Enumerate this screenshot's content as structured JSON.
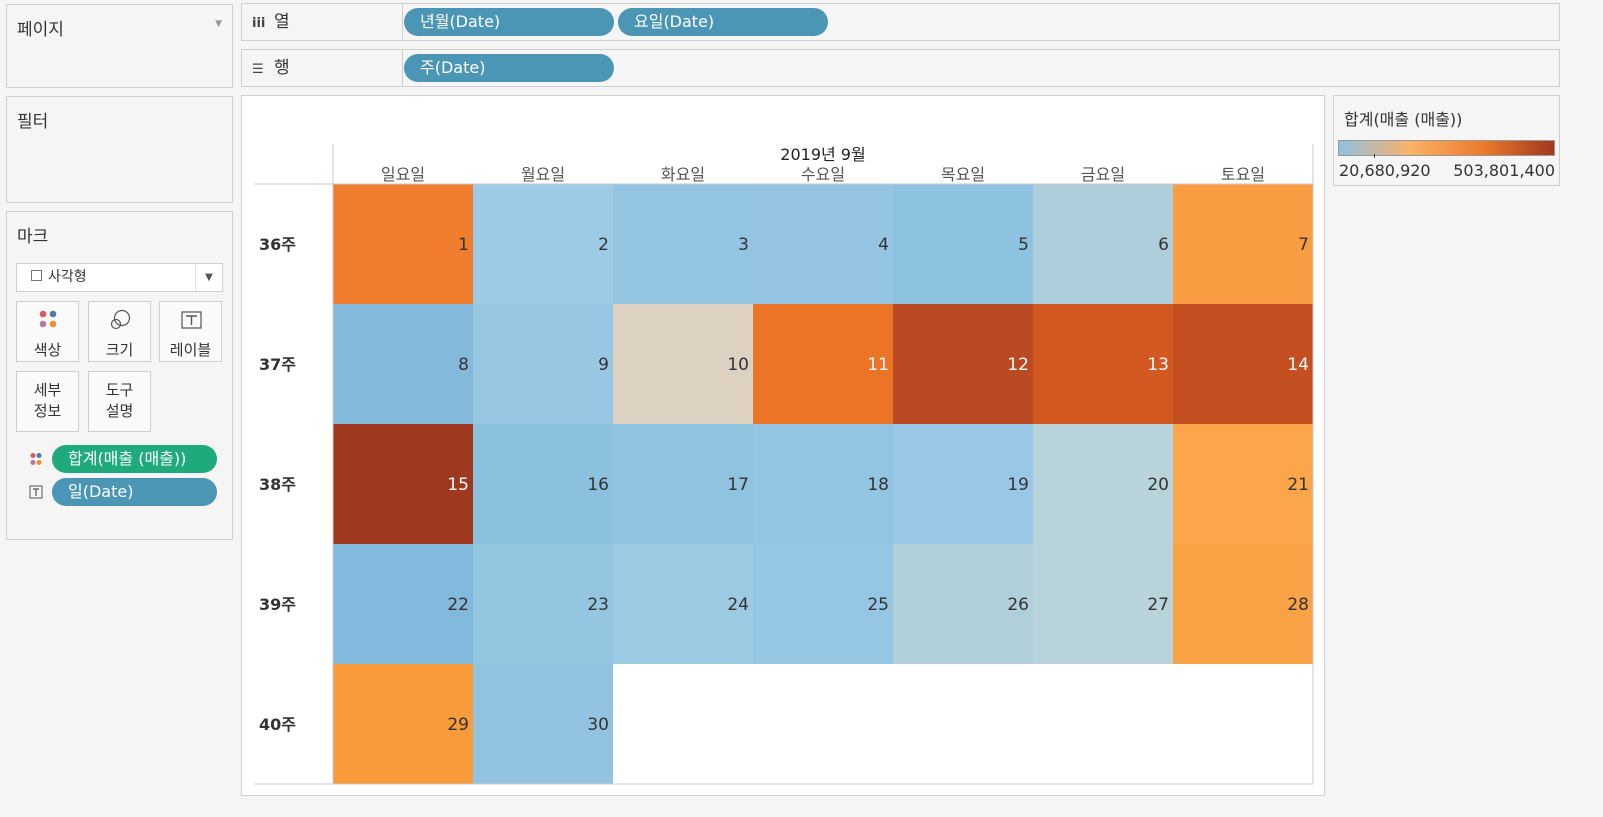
{
  "pages_panel": {
    "title": "페이지"
  },
  "filters_panel": {
    "title": "필터"
  },
  "marks_panel": {
    "title": "마크",
    "mark_type": "사각형",
    "buttons": {
      "color": "색상",
      "size": "크기",
      "label": "레이블",
      "detail": "세부\n정보",
      "tooltip": "도구\n설명"
    },
    "pills": [
      {
        "field": "합계(매출 (매출))",
        "encoding": "color-icon"
      },
      {
        "field": "일(Date)",
        "encoding": "label-icon"
      }
    ]
  },
  "columns_shelf": {
    "label": "열",
    "pills": [
      "년월(Date)",
      "요일(Date)"
    ]
  },
  "rows_shelf": {
    "label": "행",
    "pills": [
      "주(Date)"
    ]
  },
  "legend": {
    "title": "합계(매출 (매출))",
    "min_label": "20,680,920",
    "max_label": "503,801,400",
    "min": 20680920,
    "max": 503801400,
    "stops": [
      "#8fc1e1",
      "#f9b166",
      "#ee7b2c",
      "#9f3820"
    ]
  },
  "chart_data": {
    "type": "heatmap",
    "title": "2019년 9월",
    "columns": [
      "일요일",
      "월요일",
      "화요일",
      "수요일",
      "목요일",
      "금요일",
      "토요일"
    ],
    "rows": [
      "36주",
      "37주",
      "38주",
      "39주",
      "40주"
    ],
    "cells": [
      {
        "row": 0,
        "col": 0,
        "day": "1",
        "color": "#ef7d2d",
        "light_text": false
      },
      {
        "row": 0,
        "col": 1,
        "day": "2",
        "color": "#9dcae4",
        "light_text": false
      },
      {
        "row": 0,
        "col": 2,
        "day": "3",
        "color": "#93c4e1",
        "light_text": false
      },
      {
        "row": 0,
        "col": 3,
        "day": "4",
        "color": "#95c5e2",
        "light_text": false
      },
      {
        "row": 0,
        "col": 4,
        "day": "5",
        "color": "#8ec2e1",
        "light_text": false
      },
      {
        "row": 0,
        "col": 5,
        "day": "6",
        "color": "#afcedb",
        "light_text": false
      },
      {
        "row": 0,
        "col": 6,
        "day": "7",
        "color": "#f99c42",
        "light_text": false
      },
      {
        "row": 1,
        "col": 0,
        "day": "8",
        "color": "#84b9dc",
        "light_text": false
      },
      {
        "row": 1,
        "col": 1,
        "day": "9",
        "color": "#98c7e3",
        "light_text": false
      },
      {
        "row": 1,
        "col": 2,
        "day": "10",
        "color": "#ddd2c1",
        "light_text": false
      },
      {
        "row": 1,
        "col": 3,
        "day": "11",
        "color": "#ec7426",
        "light_text": true
      },
      {
        "row": 1,
        "col": 4,
        "day": "12",
        "color": "#b94a22",
        "light_text": true
      },
      {
        "row": 1,
        "col": 5,
        "day": "13",
        "color": "#d35821",
        "light_text": true
      },
      {
        "row": 1,
        "col": 6,
        "day": "14",
        "color": "#c44f21",
        "light_text": true
      },
      {
        "row": 2,
        "col": 0,
        "day": "15",
        "color": "#9e3920",
        "light_text": true
      },
      {
        "row": 2,
        "col": 1,
        "day": "16",
        "color": "#8cc0df",
        "light_text": false
      },
      {
        "row": 2,
        "col": 2,
        "day": "17",
        "color": "#90c3e0",
        "light_text": false
      },
      {
        "row": 2,
        "col": 3,
        "day": "18",
        "color": "#93c4e1",
        "light_text": false
      },
      {
        "row": 2,
        "col": 4,
        "day": "19",
        "color": "#98c8e5",
        "light_text": false
      },
      {
        "row": 2,
        "col": 5,
        "day": "20",
        "color": "#b8d3d9",
        "light_text": false
      },
      {
        "row": 2,
        "col": 6,
        "day": "21",
        "color": "#fca64b",
        "light_text": false
      },
      {
        "row": 3,
        "col": 0,
        "day": "22",
        "color": "#83b9dc",
        "light_text": false
      },
      {
        "row": 3,
        "col": 1,
        "day": "23",
        "color": "#94c5e1",
        "light_text": false
      },
      {
        "row": 3,
        "col": 2,
        "day": "24",
        "color": "#9ecbe4",
        "light_text": false
      },
      {
        "row": 3,
        "col": 3,
        "day": "25",
        "color": "#95c6e3",
        "light_text": false
      },
      {
        "row": 3,
        "col": 4,
        "day": "26",
        "color": "#b0cfdb",
        "light_text": false
      },
      {
        "row": 3,
        "col": 5,
        "day": "27",
        "color": "#b8d3d9",
        "light_text": false
      },
      {
        "row": 3,
        "col": 6,
        "day": "28",
        "color": "#faa346",
        "light_text": false
      },
      {
        "row": 4,
        "col": 0,
        "day": "29",
        "color": "#f99b3b",
        "light_text": false
      },
      {
        "row": 4,
        "col": 1,
        "day": "30",
        "color": "#92c4e2",
        "light_text": false
      }
    ]
  }
}
